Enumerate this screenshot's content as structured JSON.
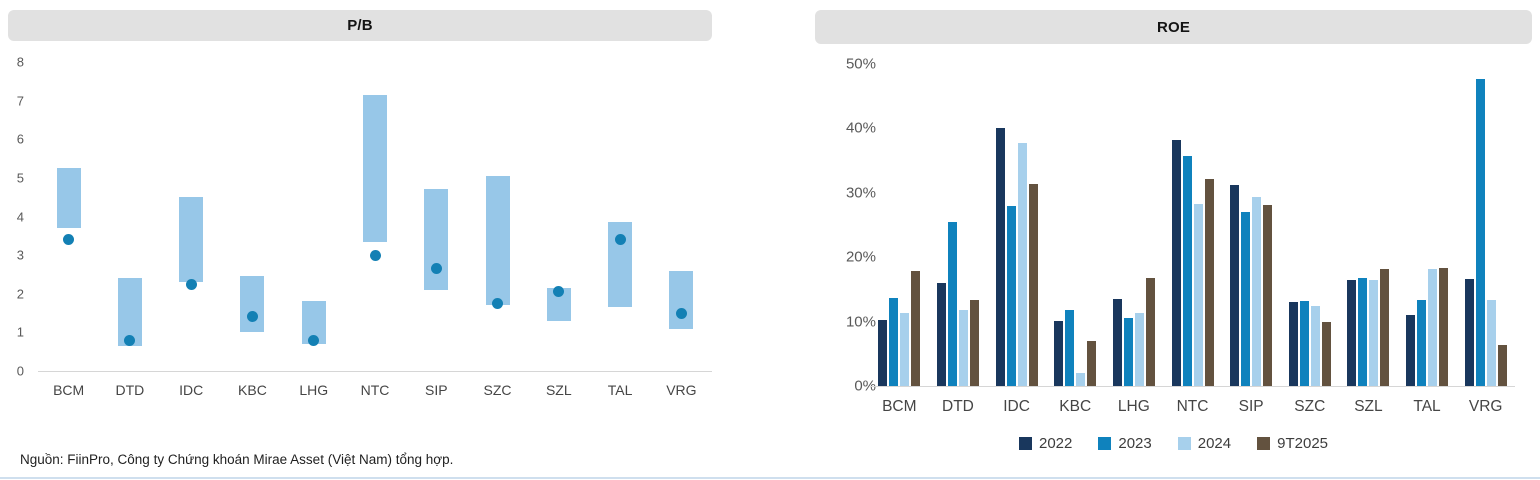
{
  "footer": {
    "source_note": "Nguồn: FiinPro, Công ty Chứng khoán Mirae Asset (Việt Nam) tổng hợp."
  },
  "colors": {
    "header_bg": "#e1e1e1",
    "title_text": "#141414",
    "axis_text": "#595959",
    "category_text": "#454545",
    "axis_line": "#d6d6d6",
    "pb_range_bar": "#97c7e8",
    "pb_dot": "#1380b4",
    "series": [
      "#19375d",
      "#0f82bd",
      "#a7d0ec",
      "#63523f"
    ],
    "bottom_rule": "#cfdfee"
  },
  "chart_data": [
    {
      "type": "bar",
      "subtype": "floating-range-with-dot",
      "title": "P/B",
      "categories": [
        "BCM",
        "DTD",
        "IDC",
        "KBC",
        "LHG",
        "NTC",
        "SIP",
        "SZC",
        "SZL",
        "TAL",
        "VRG"
      ],
      "range_low": [
        3.7,
        0.65,
        2.3,
        1.0,
        0.7,
        3.35,
        2.1,
        1.7,
        1.3,
        1.65,
        1.1
      ],
      "range_high": [
        5.25,
        2.4,
        4.5,
        2.45,
        1.8,
        7.15,
        4.7,
        5.05,
        2.15,
        3.85,
        2.6
      ],
      "dot_values": [
        3.4,
        0.8,
        2.25,
        1.4,
        0.8,
        3.0,
        2.65,
        1.75,
        2.05,
        3.4,
        1.5
      ],
      "ylim": [
        0,
        8
      ],
      "yticks": [
        0,
        1,
        2,
        3,
        4,
        5,
        6,
        7,
        8
      ],
      "ytick_labels": [
        "0",
        "1",
        "2",
        "3",
        "4",
        "5",
        "6",
        "7",
        "8"
      ],
      "grid": false,
      "legend": "none"
    },
    {
      "type": "bar",
      "subtype": "grouped",
      "title": "ROE",
      "categories": [
        "BCM",
        "DTD",
        "IDC",
        "KBC",
        "LHG",
        "NTC",
        "SIP",
        "SZC",
        "SZL",
        "TAL",
        "VRG"
      ],
      "series": [
        {
          "name": "2022",
          "values": [
            10.3,
            16.0,
            40.0,
            10.1,
            13.5,
            38.2,
            31.2,
            13.0,
            16.4,
            11.0,
            16.6
          ]
        },
        {
          "name": "2023",
          "values": [
            13.7,
            25.4,
            28.0,
            11.8,
            10.6,
            35.7,
            27.0,
            13.2,
            16.8,
            13.4,
            47.6
          ]
        },
        {
          "name": "2024",
          "values": [
            11.3,
            11.8,
            37.7,
            2.0,
            11.3,
            28.2,
            29.4,
            12.4,
            16.5,
            18.1,
            13.3
          ]
        },
        {
          "name": "9T2025",
          "values": [
            17.9,
            13.4,
            31.4,
            7.0,
            16.8,
            32.2,
            28.1,
            9.9,
            18.1,
            18.3,
            6.3
          ]
        }
      ],
      "ylim": [
        0,
        50
      ],
      "yticks": [
        0,
        10,
        20,
        30,
        40,
        50
      ],
      "ytick_labels": [
        "0%",
        "10%",
        "20%",
        "30%",
        "40%",
        "50%"
      ],
      "grid": false,
      "legend_position": "bottom"
    }
  ]
}
